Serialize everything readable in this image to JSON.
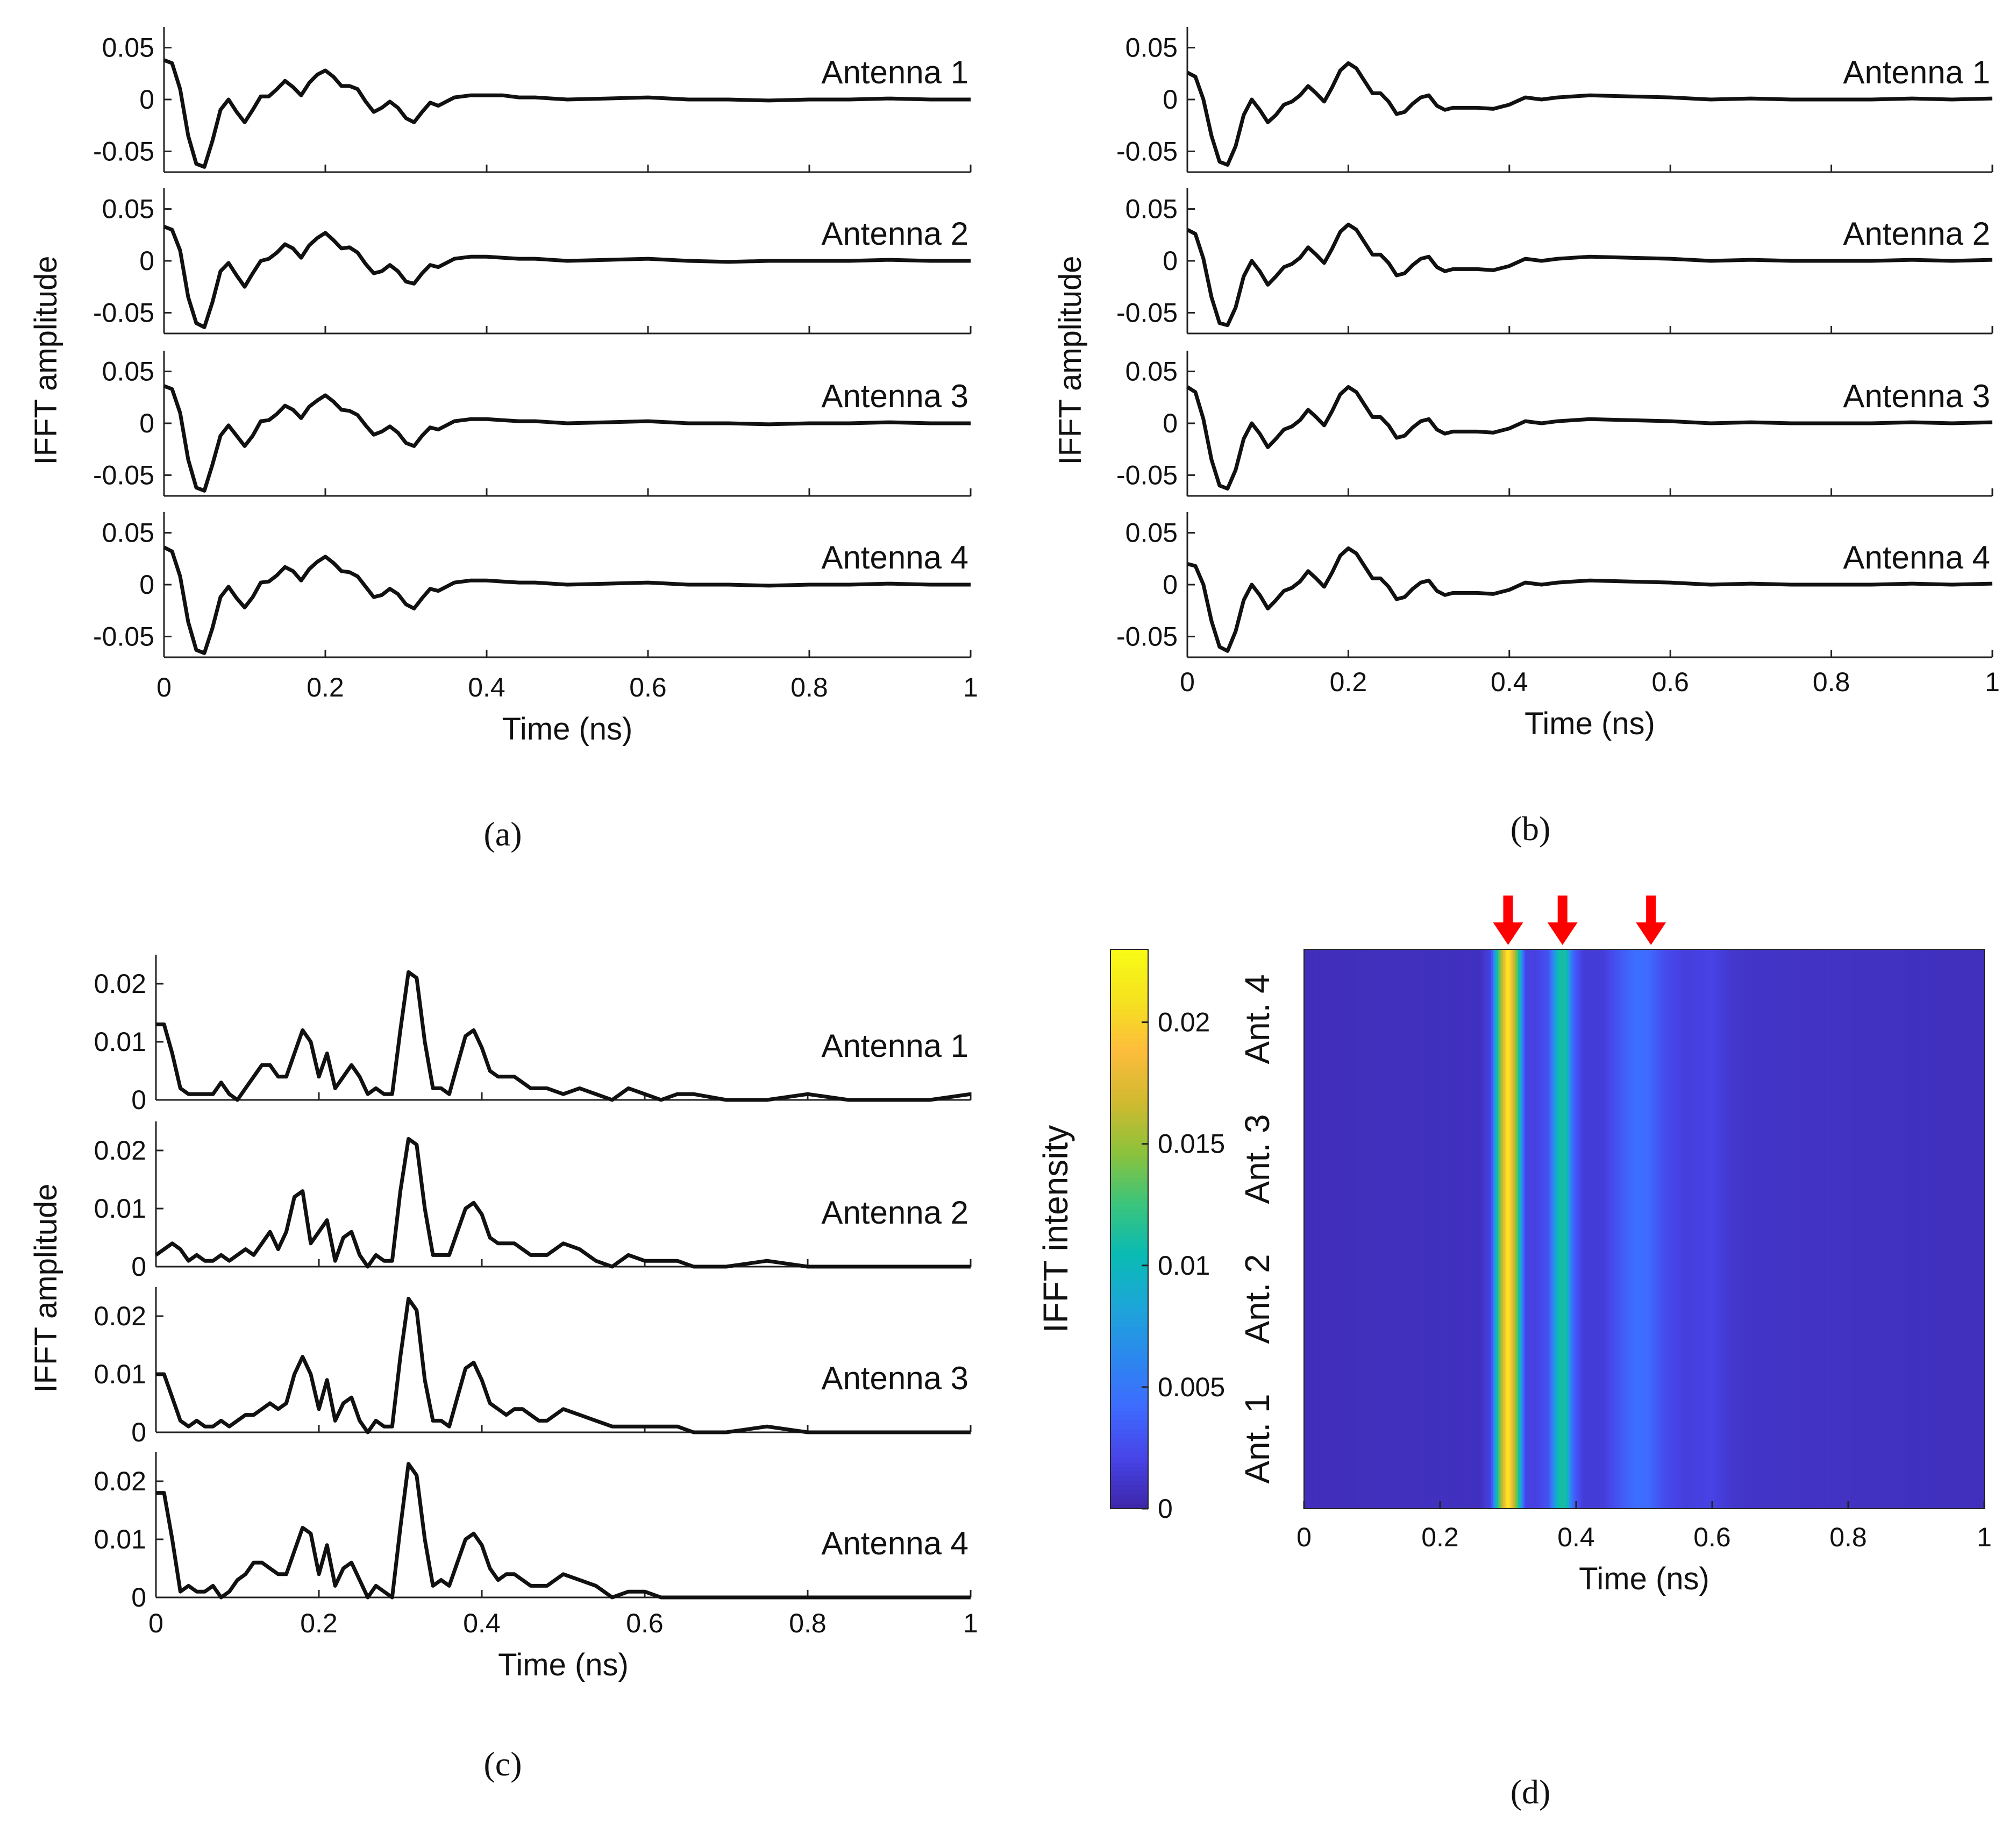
{
  "figure": {
    "captions": [
      "(a)",
      "(b)",
      "(c)",
      "(d)"
    ]
  },
  "chart_data": [
    {
      "panel": "a",
      "type": "line",
      "xlabel": "Time (ns)",
      "ylabel": "IFFT amplitude",
      "xlim": [
        0,
        1
      ],
      "ylim": [
        -0.07,
        0.07
      ],
      "xticks": [
        "0",
        "0.2",
        "0.4",
        "0.6",
        "0.8",
        "1"
      ],
      "yticks": [
        "0.05",
        "0",
        "-0.05"
      ],
      "x": [
        0,
        0.01,
        0.02,
        0.03,
        0.04,
        0.05,
        0.06,
        0.07,
        0.08,
        0.09,
        0.1,
        0.11,
        0.12,
        0.13,
        0.14,
        0.15,
        0.16,
        0.17,
        0.18,
        0.19,
        0.2,
        0.21,
        0.22,
        0.23,
        0.24,
        0.25,
        0.26,
        0.27,
        0.28,
        0.29,
        0.3,
        0.31,
        0.32,
        0.33,
        0.34,
        0.35,
        0.36,
        0.38,
        0.4,
        0.42,
        0.44,
        0.46,
        0.5,
        0.55,
        0.6,
        0.65,
        0.7,
        0.75,
        0.8,
        0.85,
        0.9,
        0.95,
        1.0
      ],
      "series": [
        {
          "name": "Antenna 1",
          "values": [
            0.038,
            0.035,
            0.01,
            -0.035,
            -0.062,
            -0.065,
            -0.04,
            -0.01,
            0.0,
            -0.012,
            -0.022,
            -0.01,
            0.003,
            0.003,
            0.01,
            0.018,
            0.012,
            0.004,
            0.016,
            0.024,
            0.028,
            0.022,
            0.013,
            0.013,
            0.01,
            -0.002,
            -0.012,
            -0.008,
            -0.002,
            -0.008,
            -0.018,
            -0.022,
            -0.012,
            -0.003,
            -0.006,
            -0.002,
            0.002,
            0.004,
            0.004,
            0.004,
            0.002,
            0.002,
            0.0,
            0.001,
            0.002,
            0.0,
            0.0,
            -0.001,
            0.0,
            0.0,
            0.001,
            0.0,
            0.0
          ]
        },
        {
          "name": "Antenna 2",
          "values": [
            0.033,
            0.03,
            0.01,
            -0.035,
            -0.06,
            -0.064,
            -0.04,
            -0.01,
            -0.002,
            -0.014,
            -0.025,
            -0.012,
            0.0,
            0.002,
            0.008,
            0.016,
            0.012,
            0.003,
            0.015,
            0.022,
            0.027,
            0.02,
            0.012,
            0.013,
            0.008,
            -0.003,
            -0.012,
            -0.01,
            -0.004,
            -0.01,
            -0.02,
            -0.022,
            -0.012,
            -0.004,
            -0.006,
            -0.002,
            0.002,
            0.004,
            0.004,
            0.003,
            0.002,
            0.002,
            0.0,
            0.001,
            0.002,
            0.0,
            -0.001,
            0.0,
            0.0,
            0.0,
            0.001,
            0.0,
            0.0
          ]
        },
        {
          "name": "Antenna 3",
          "values": [
            0.036,
            0.033,
            0.01,
            -0.035,
            -0.062,
            -0.065,
            -0.04,
            -0.012,
            -0.002,
            -0.012,
            -0.022,
            -0.012,
            0.002,
            0.003,
            0.009,
            0.017,
            0.013,
            0.005,
            0.016,
            0.022,
            0.027,
            0.021,
            0.013,
            0.012,
            0.008,
            -0.002,
            -0.011,
            -0.008,
            -0.003,
            -0.009,
            -0.019,
            -0.022,
            -0.012,
            -0.004,
            -0.006,
            -0.002,
            0.002,
            0.004,
            0.004,
            0.003,
            0.002,
            0.002,
            0.0,
            0.001,
            0.002,
            0.0,
            0.0,
            -0.001,
            0.0,
            0.0,
            0.001,
            0.0,
            0.0
          ]
        },
        {
          "name": "Antenna 4",
          "values": [
            0.036,
            0.032,
            0.008,
            -0.036,
            -0.063,
            -0.066,
            -0.042,
            -0.012,
            -0.002,
            -0.013,
            -0.022,
            -0.012,
            0.002,
            0.003,
            0.009,
            0.017,
            0.013,
            0.004,
            0.015,
            0.022,
            0.027,
            0.021,
            0.013,
            0.012,
            0.008,
            -0.002,
            -0.012,
            -0.01,
            -0.004,
            -0.009,
            -0.019,
            -0.023,
            -0.013,
            -0.004,
            -0.006,
            -0.002,
            0.002,
            0.004,
            0.004,
            0.003,
            0.002,
            0.002,
            0.0,
            0.001,
            0.002,
            0.0,
            0.0,
            -0.001,
            0.0,
            0.0,
            0.001,
            0.0,
            0.0
          ]
        }
      ]
    },
    {
      "panel": "b",
      "type": "line",
      "xlabel": "Time (ns)",
      "ylabel": "IFFT amplitude",
      "xlim": [
        0,
        1
      ],
      "ylim": [
        -0.07,
        0.07
      ],
      "xticks": [
        "0",
        "0.2",
        "0.4",
        "0.6",
        "0.8",
        "1"
      ],
      "yticks": [
        "0.05",
        "0",
        "-0.05"
      ],
      "x": [
        0,
        0.01,
        0.02,
        0.03,
        0.04,
        0.05,
        0.06,
        0.07,
        0.08,
        0.09,
        0.1,
        0.11,
        0.12,
        0.13,
        0.14,
        0.15,
        0.16,
        0.17,
        0.18,
        0.19,
        0.2,
        0.21,
        0.22,
        0.23,
        0.24,
        0.25,
        0.26,
        0.27,
        0.28,
        0.29,
        0.3,
        0.31,
        0.32,
        0.33,
        0.34,
        0.35,
        0.36,
        0.38,
        0.4,
        0.42,
        0.44,
        0.46,
        0.5,
        0.55,
        0.6,
        0.65,
        0.7,
        0.75,
        0.8,
        0.85,
        0.9,
        0.95,
        1.0
      ],
      "series": [
        {
          "name": "Antenna 1",
          "values": [
            0.026,
            0.022,
            0.0,
            -0.035,
            -0.06,
            -0.063,
            -0.045,
            -0.015,
            0.0,
            -0.01,
            -0.022,
            -0.015,
            -0.005,
            -0.002,
            0.004,
            0.013,
            0.006,
            -0.002,
            0.012,
            0.028,
            0.035,
            0.03,
            0.018,
            0.006,
            0.006,
            -0.002,
            -0.014,
            -0.012,
            -0.004,
            0.002,
            0.004,
            -0.006,
            -0.01,
            -0.008,
            -0.008,
            -0.008,
            -0.008,
            -0.009,
            -0.005,
            0.002,
            0.0,
            0.002,
            0.004,
            0.003,
            0.002,
            0.0,
            0.001,
            0.0,
            0.0,
            0.0,
            0.001,
            0.0,
            0.001
          ]
        },
        {
          "name": "Antenna 2",
          "values": [
            0.03,
            0.026,
            0.002,
            -0.035,
            -0.06,
            -0.062,
            -0.045,
            -0.015,
            0.0,
            -0.01,
            -0.023,
            -0.015,
            -0.006,
            -0.003,
            0.003,
            0.013,
            0.006,
            -0.002,
            0.012,
            0.028,
            0.035,
            0.03,
            0.018,
            0.006,
            0.006,
            -0.002,
            -0.014,
            -0.012,
            -0.004,
            0.002,
            0.004,
            -0.006,
            -0.01,
            -0.008,
            -0.008,
            -0.008,
            -0.008,
            -0.009,
            -0.005,
            0.002,
            0.0,
            0.002,
            0.004,
            0.003,
            0.002,
            0.0,
            0.001,
            0.0,
            0.0,
            0.0,
            0.001,
            0.0,
            0.001
          ]
        },
        {
          "name": "Antenna 3",
          "values": [
            0.035,
            0.03,
            0.004,
            -0.035,
            -0.06,
            -0.063,
            -0.045,
            -0.015,
            0.0,
            -0.01,
            -0.023,
            -0.015,
            -0.006,
            -0.003,
            0.003,
            0.013,
            0.006,
            -0.002,
            0.012,
            0.028,
            0.035,
            0.03,
            0.018,
            0.006,
            0.006,
            -0.002,
            -0.014,
            -0.012,
            -0.004,
            0.002,
            0.004,
            -0.006,
            -0.01,
            -0.008,
            -0.008,
            -0.008,
            -0.008,
            -0.009,
            -0.005,
            0.002,
            0.0,
            0.002,
            0.004,
            0.003,
            0.002,
            0.0,
            0.001,
            0.0,
            0.0,
            0.0,
            0.001,
            0.0,
            0.001
          ]
        },
        {
          "name": "Antenna 4",
          "values": [
            0.02,
            0.018,
            0.0,
            -0.035,
            -0.06,
            -0.064,
            -0.045,
            -0.015,
            0.0,
            -0.01,
            -0.023,
            -0.015,
            -0.006,
            -0.003,
            0.003,
            0.013,
            0.006,
            -0.002,
            0.012,
            0.028,
            0.035,
            0.03,
            0.018,
            0.006,
            0.006,
            -0.002,
            -0.014,
            -0.012,
            -0.004,
            0.002,
            0.004,
            -0.006,
            -0.01,
            -0.008,
            -0.008,
            -0.008,
            -0.008,
            -0.009,
            -0.005,
            0.002,
            0.0,
            0.002,
            0.004,
            0.003,
            0.002,
            0.0,
            0.001,
            0.0,
            0.0,
            0.0,
            0.001,
            0.0,
            0.001
          ]
        }
      ]
    },
    {
      "panel": "c",
      "type": "line",
      "xlabel": "Time (ns)",
      "ylabel": "IFFT amplitude",
      "xlim": [
        0,
        1
      ],
      "ylim": [
        0,
        0.025
      ],
      "xticks": [
        "0",
        "0.2",
        "0.4",
        "0.6",
        "0.8",
        "1"
      ],
      "yticks": [
        "0.02",
        "0.01",
        "0"
      ],
      "x": [
        0,
        0.01,
        0.02,
        0.03,
        0.04,
        0.05,
        0.06,
        0.07,
        0.08,
        0.09,
        0.1,
        0.11,
        0.12,
        0.13,
        0.14,
        0.15,
        0.16,
        0.17,
        0.18,
        0.19,
        0.2,
        0.21,
        0.22,
        0.23,
        0.24,
        0.25,
        0.26,
        0.27,
        0.28,
        0.29,
        0.3,
        0.31,
        0.32,
        0.33,
        0.34,
        0.35,
        0.36,
        0.37,
        0.38,
        0.39,
        0.4,
        0.41,
        0.42,
        0.43,
        0.44,
        0.45,
        0.46,
        0.47,
        0.48,
        0.5,
        0.52,
        0.54,
        0.56,
        0.58,
        0.6,
        0.62,
        0.64,
        0.66,
        0.7,
        0.75,
        0.8,
        0.85,
        0.9,
        0.95,
        1.0
      ],
      "series": [
        {
          "name": "Antenna 1",
          "values": [
            0.013,
            0.013,
            0.008,
            0.002,
            0.001,
            0.001,
            0.001,
            0.001,
            0.003,
            0.001,
            0.0,
            0.002,
            0.004,
            0.006,
            0.006,
            0.004,
            0.004,
            0.008,
            0.012,
            0.01,
            0.004,
            0.008,
            0.002,
            0.004,
            0.006,
            0.004,
            0.001,
            0.002,
            0.001,
            0.001,
            0.012,
            0.022,
            0.021,
            0.01,
            0.002,
            0.002,
            0.001,
            0.006,
            0.011,
            0.012,
            0.009,
            0.005,
            0.004,
            0.004,
            0.004,
            0.003,
            0.002,
            0.002,
            0.002,
            0.001,
            0.002,
            0.001,
            0.0,
            0.002,
            0.001,
            0.0,
            0.001,
            0.001,
            0.0,
            0.0,
            0.001,
            0.0,
            0.0,
            0.0,
            0.001
          ]
        },
        {
          "name": "Antenna 2",
          "values": [
            0.002,
            0.003,
            0.004,
            0.003,
            0.001,
            0.002,
            0.001,
            0.001,
            0.002,
            0.001,
            0.002,
            0.003,
            0.002,
            0.004,
            0.006,
            0.003,
            0.006,
            0.012,
            0.013,
            0.004,
            0.006,
            0.008,
            0.001,
            0.005,
            0.006,
            0.002,
            0.0,
            0.002,
            0.001,
            0.001,
            0.013,
            0.022,
            0.021,
            0.01,
            0.002,
            0.002,
            0.002,
            0.006,
            0.01,
            0.011,
            0.009,
            0.005,
            0.004,
            0.004,
            0.004,
            0.003,
            0.002,
            0.002,
            0.002,
            0.004,
            0.003,
            0.001,
            0.0,
            0.002,
            0.001,
            0.001,
            0.001,
            0.0,
            0.0,
            0.001,
            0.0,
            0.0,
            0.0,
            0.0,
            0.0
          ]
        },
        {
          "name": "Antenna 3",
          "values": [
            0.01,
            0.01,
            0.006,
            0.002,
            0.001,
            0.002,
            0.001,
            0.001,
            0.002,
            0.001,
            0.002,
            0.003,
            0.003,
            0.004,
            0.005,
            0.004,
            0.005,
            0.01,
            0.013,
            0.01,
            0.004,
            0.009,
            0.002,
            0.005,
            0.006,
            0.002,
            0.0,
            0.002,
            0.001,
            0.001,
            0.013,
            0.023,
            0.021,
            0.009,
            0.002,
            0.002,
            0.001,
            0.006,
            0.011,
            0.012,
            0.009,
            0.005,
            0.004,
            0.003,
            0.004,
            0.004,
            0.003,
            0.002,
            0.002,
            0.004,
            0.003,
            0.002,
            0.001,
            0.001,
            0.001,
            0.001,
            0.001,
            0.0,
            0.0,
            0.001,
            0.0,
            0.0,
            0.0,
            0.0,
            0.0
          ]
        },
        {
          "name": "Antenna 4",
          "values": [
            0.018,
            0.018,
            0.01,
            0.001,
            0.002,
            0.001,
            0.001,
            0.002,
            0.0,
            0.001,
            0.003,
            0.004,
            0.006,
            0.006,
            0.005,
            0.004,
            0.004,
            0.008,
            0.012,
            0.011,
            0.004,
            0.009,
            0.002,
            0.005,
            0.006,
            0.003,
            0.0,
            0.002,
            0.001,
            0.0,
            0.012,
            0.023,
            0.021,
            0.01,
            0.002,
            0.003,
            0.002,
            0.006,
            0.01,
            0.011,
            0.009,
            0.005,
            0.003,
            0.004,
            0.004,
            0.003,
            0.002,
            0.002,
            0.002,
            0.004,
            0.003,
            0.002,
            0.0,
            0.001,
            0.001,
            0.0,
            0.0,
            0.0,
            0.0,
            0.0,
            0.0,
            0.0,
            0.0,
            0.0,
            0.0
          ]
        }
      ]
    },
    {
      "panel": "d",
      "type": "heatmap",
      "xlabel": "Time (ns)",
      "xlim": [
        0,
        1
      ],
      "xticks": [
        "0",
        "0.2",
        "0.4",
        "0.6",
        "0.8",
        "1"
      ],
      "rows": [
        "Ant. 1",
        "Ant. 2",
        "Ant. 3",
        "Ant. 4"
      ],
      "colorbar": {
        "label": "IFFT intensity",
        "range": [
          0,
          0.023
        ],
        "ticks": [
          "0.02",
          "0.015",
          "0.01",
          "0.005",
          "0"
        ],
        "tick_values": [
          0.02,
          0.015,
          0.01,
          0.005,
          0
        ]
      },
      "profile": {
        "x": [
          0,
          0.26,
          0.275,
          0.285,
          0.3,
          0.315,
          0.325,
          0.34,
          0.36,
          0.375,
          0.385,
          0.395,
          0.41,
          0.44,
          0.47,
          0.49,
          0.51,
          0.53,
          0.56,
          0.6,
          0.63,
          0.66,
          1.0
        ],
        "values": [
          0.0006,
          0.0008,
          0.002,
          0.012,
          0.022,
          0.012,
          0.002,
          0.0018,
          0.003,
          0.011,
          0.011,
          0.004,
          0.0015,
          0.0016,
          0.0035,
          0.0045,
          0.004,
          0.0025,
          0.0017,
          0.002,
          0.0012,
          0.001,
          0.0007
        ]
      },
      "markers": [
        {
          "x": 0.3,
          "color": "#ff0000"
        },
        {
          "x": 0.38,
          "color": "#ff0000"
        },
        {
          "x": 0.51,
          "color": "#ff0000"
        }
      ],
      "colormap": [
        "#3e26a8",
        "#4744e8",
        "#3e6bff",
        "#2b89ee",
        "#1ca6d8",
        "#09bbb3",
        "#3bc47b",
        "#8cc23b",
        "#d1ba2f",
        "#fdbc3c",
        "#f5e31f",
        "#f9fb15"
      ]
    }
  ]
}
